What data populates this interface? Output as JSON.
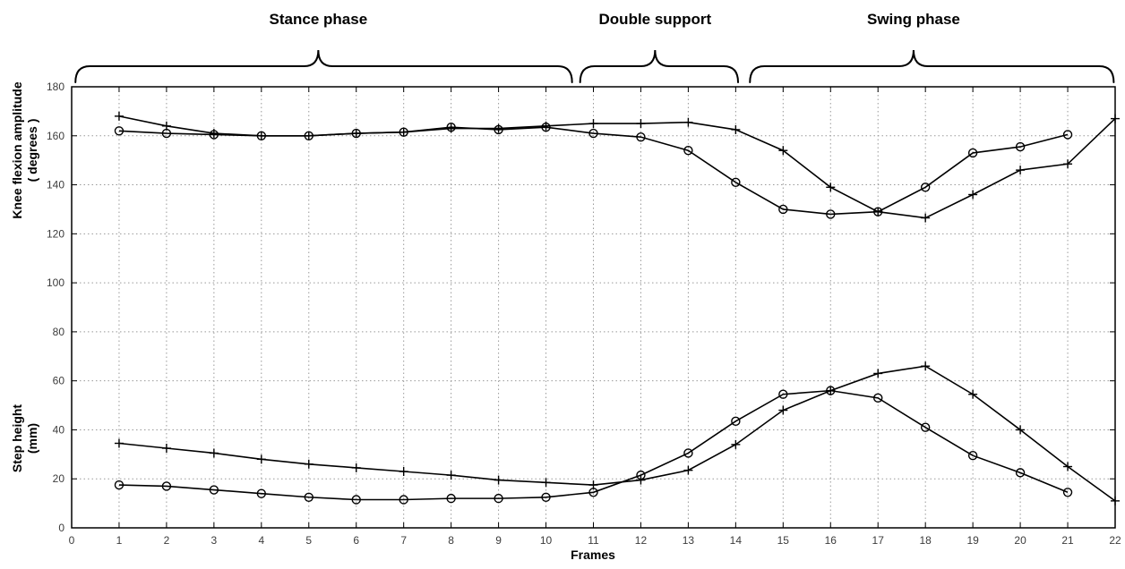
{
  "chart_data": {
    "type": "line",
    "title": "",
    "xlabel": "Frames",
    "ylabel_top_line1": "Knee flexion amplitude",
    "ylabel_top_line2": "( degrees )",
    "ylabel_bottom_line1": "Step height",
    "ylabel_bottom_line2": "(mm)",
    "xlim": [
      0,
      22
    ],
    "ylim": [
      0,
      180
    ],
    "xticks": [
      0,
      1,
      2,
      3,
      4,
      5,
      6,
      7,
      8,
      9,
      10,
      11,
      12,
      13,
      14,
      15,
      16,
      17,
      18,
      19,
      20,
      21,
      22
    ],
    "yticks": [
      0,
      20,
      40,
      60,
      80,
      100,
      120,
      140,
      160,
      180
    ],
    "grid": true,
    "legend_position": "none",
    "line_color": "#000000",
    "grid_color": "#999999",
    "series": [
      {
        "name": "knee-flexion-plus",
        "marker": "plus",
        "x": [
          1,
          2,
          3,
          4,
          5,
          6,
          7,
          8,
          9,
          10,
          11,
          12,
          13,
          14,
          15,
          16,
          17,
          18,
          19,
          20,
          21,
          22
        ],
        "values": [
          168,
          164,
          161,
          160,
          160,
          161,
          161.5,
          163,
          163,
          164,
          165,
          165,
          165.5,
          162.5,
          154,
          139,
          129,
          126.5,
          136,
          146,
          148.5,
          167
        ]
      },
      {
        "name": "knee-flexion-circle",
        "marker": "circle",
        "x": [
          1,
          2,
          3,
          4,
          5,
          6,
          7,
          8,
          9,
          10,
          11,
          12,
          13,
          14,
          15,
          16,
          17,
          18,
          19,
          20,
          21
        ],
        "values": [
          162,
          161,
          160.5,
          160,
          160,
          161,
          161.5,
          163.5,
          162.5,
          163.5,
          161,
          159.5,
          154,
          141,
          130,
          128,
          129,
          139,
          153,
          155.5,
          160.5
        ]
      },
      {
        "name": "step-height-plus",
        "marker": "plus",
        "x": [
          1,
          2,
          3,
          4,
          5,
          6,
          7,
          8,
          9,
          10,
          11,
          12,
          13,
          14,
          15,
          16,
          17,
          18,
          19,
          20,
          21,
          22
        ],
        "values": [
          34.5,
          32.5,
          30.5,
          28,
          26,
          24.5,
          23,
          21.5,
          19.5,
          18.5,
          17.5,
          19.5,
          23.5,
          34,
          48,
          56,
          63,
          66,
          54.5,
          40,
          25,
          11
        ]
      },
      {
        "name": "step-height-circle",
        "marker": "circle",
        "x": [
          1,
          2,
          3,
          4,
          5,
          6,
          7,
          8,
          9,
          10,
          11,
          12,
          13,
          14,
          15,
          16,
          17,
          18,
          19,
          20,
          21
        ],
        "values": [
          17.5,
          17,
          15.5,
          14,
          12.5,
          11.5,
          11.5,
          12,
          12,
          12.5,
          14.5,
          21.5,
          30.5,
          43.5,
          54.5,
          56,
          53,
          41,
          29.5,
          22.5,
          14.5
        ]
      }
    ],
    "annotations": [
      {
        "label": "Stance phase",
        "x_start": 0.08,
        "x_end": 10.55,
        "label_x": 5.2
      },
      {
        "label": "Double support",
        "x_start": 10.72,
        "x_end": 14.05,
        "label_x": 12.3
      },
      {
        "label": "Swing phase",
        "x_start": 14.3,
        "x_end": 21.97,
        "label_x": 17.75
      }
    ]
  }
}
